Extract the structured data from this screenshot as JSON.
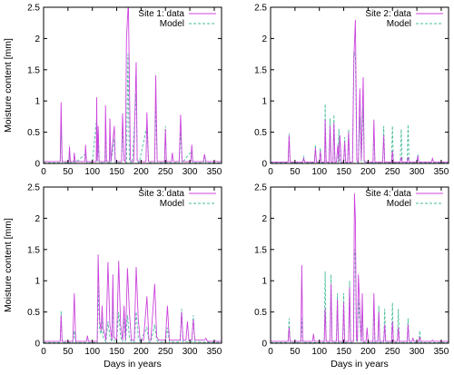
{
  "figure": {
    "xlabel": "Days in years",
    "ylabel": "Moisture content [mm]"
  },
  "chart_data": [
    {
      "type": "line",
      "series": [
        {
          "name": "Site 1:  data",
          "color": "#cc44dd",
          "dash": "solid",
          "x": [
            0,
            10,
            20,
            30,
            34,
            36,
            38,
            44,
            52,
            53,
            55,
            62,
            63,
            65,
            85,
            86,
            88,
            100,
            108,
            109,
            110,
            112,
            114,
            120,
            126,
            127,
            129,
            135,
            136,
            138,
            145,
            147,
            150,
            155,
            160,
            162,
            165,
            168,
            170,
            174,
            178,
            182,
            185,
            190,
            192,
            196,
            200,
            205,
            210,
            212,
            215,
            220,
            228,
            230,
            233,
            240,
            248,
            250,
            252,
            262,
            264,
            266,
            278,
            281,
            284,
            292,
            302,
            304,
            306,
            315,
            328,
            330,
            333,
            345,
            360,
            365
          ],
          "y": [
            0.03,
            0.03,
            0.03,
            0.03,
            0.03,
            0.98,
            0.03,
            0.03,
            0.03,
            0.27,
            0.03,
            0.03,
            0.17,
            0.03,
            0.03,
            0.3,
            0.03,
            0.03,
            0.03,
            1.06,
            0.05,
            0.6,
            0.03,
            0.03,
            0.03,
            0.93,
            0.03,
            0.03,
            0.72,
            0.03,
            0.6,
            0.04,
            0.03,
            0.03,
            0.03,
            0.8,
            0.05,
            0.03,
            2.0,
            2.6,
            0.05,
            0.03,
            0.03,
            1.62,
            0.05,
            0.03,
            0.03,
            0.03,
            0.03,
            0.82,
            0.03,
            0.03,
            0.03,
            1.41,
            0.03,
            0.03,
            0.03,
            0.55,
            0.03,
            0.03,
            0.17,
            0.03,
            0.03,
            0.78,
            0.03,
            0.03,
            0.03,
            0.3,
            0.03,
            0.03,
            0.03,
            0.15,
            0.03,
            0.03,
            0.03,
            0.03
          ]
        },
        {
          "name": "Model",
          "color": "#44bb99",
          "dash": "dashed",
          "x": [
            0,
            34,
            36,
            38,
            52,
            53,
            55,
            62,
            63,
            65,
            86,
            88,
            100,
            109,
            110,
            112,
            114,
            126,
            127,
            129,
            135,
            136,
            138,
            145,
            147,
            160,
            162,
            165,
            170,
            173,
            176,
            182,
            190,
            192,
            196,
            212,
            215,
            228,
            230,
            233,
            248,
            250,
            252,
            278,
            281,
            284,
            304,
            306,
            328,
            330,
            333,
            365
          ],
          "y": [
            0.01,
            0.01,
            0.55,
            0.01,
            0.01,
            0.2,
            0.01,
            0.01,
            0.1,
            0.01,
            0.15,
            0.01,
            0.01,
            0.72,
            0.03,
            0.3,
            0.01,
            0.01,
            0.62,
            0.01,
            0.01,
            0.45,
            0.01,
            0.4,
            0.01,
            0.01,
            0.6,
            0.03,
            0.01,
            1.75,
            0.03,
            0.01,
            1.12,
            0.03,
            0.01,
            0.6,
            0.01,
            0.01,
            1.0,
            0.01,
            0.01,
            0.6,
            0.01,
            0.01,
            0.5,
            0.01,
            0.2,
            0.01,
            0.01,
            0.1,
            0.01,
            0.01
          ]
        }
      ]
    },
    {
      "type": "line",
      "series": [
        {
          "name": "Site 2:  data",
          "color": "#cc44dd",
          "dash": "solid",
          "x": [
            0,
            36,
            38,
            40,
            66,
            68,
            70,
            90,
            92,
            94,
            100,
            102,
            104,
            111,
            112,
            114,
            120,
            122,
            124,
            128,
            130,
            132,
            135,
            138,
            140,
            142,
            145,
            150,
            152,
            154,
            158,
            160,
            162,
            168,
            171,
            174,
            177,
            180,
            183,
            186,
            190,
            192,
            195,
            210,
            212,
            214,
            230,
            232,
            234,
            248,
            250,
            252,
            266,
            268,
            270,
            280,
            282,
            284,
            300,
            302,
            304,
            330,
            332,
            334,
            365
          ],
          "y": [
            0.02,
            0.02,
            0.45,
            0.02,
            0.02,
            0.08,
            0.02,
            0.02,
            0.25,
            0.02,
            0.02,
            0.2,
            0.02,
            0.02,
            0.7,
            0.02,
            0.02,
            0.6,
            0.02,
            0.02,
            0.65,
            0.02,
            0.02,
            0.3,
            0.02,
            0.45,
            0.02,
            0.02,
            0.35,
            0.02,
            0.02,
            0.5,
            0.02,
            0.02,
            1.7,
            2.3,
            0.05,
            0.02,
            1.2,
            0.05,
            1.38,
            0.05,
            0.02,
            0.02,
            0.7,
            0.02,
            0.02,
            0.45,
            0.02,
            0.02,
            0.2,
            0.02,
            0.02,
            0.1,
            0.02,
            0.02,
            0.1,
            0.02,
            0.02,
            0.12,
            0.02,
            0.02,
            0.08,
            0.02,
            0.02
          ]
        },
        {
          "name": "Model",
          "color": "#44bb99",
          "dash": "dashed",
          "x": [
            0,
            36,
            38,
            40,
            66,
            68,
            70,
            90,
            92,
            94,
            100,
            102,
            104,
            111,
            112,
            114,
            120,
            122,
            124,
            128,
            130,
            132,
            138,
            140,
            142,
            150,
            152,
            154,
            158,
            160,
            162,
            168,
            171,
            174,
            177,
            180,
            183,
            186,
            190,
            192,
            195,
            210,
            212,
            214,
            230,
            232,
            234,
            248,
            250,
            252,
            266,
            268,
            270,
            280,
            282,
            284,
            300,
            302,
            304,
            365
          ],
          "y": [
            0.01,
            0.01,
            0.48,
            0.01,
            0.01,
            0.12,
            0.01,
            0.01,
            0.3,
            0.01,
            0.01,
            0.25,
            0.01,
            0.01,
            0.95,
            0.01,
            0.01,
            0.72,
            0.01,
            0.01,
            0.78,
            0.01,
            0.01,
            0.55,
            0.01,
            0.01,
            0.42,
            0.01,
            0.01,
            0.55,
            0.01,
            0.01,
            1.8,
            1.7,
            0.03,
            0.01,
            0.75,
            0.03,
            0.9,
            0.03,
            0.01,
            0.01,
            0.55,
            0.01,
            0.01,
            0.6,
            0.01,
            0.01,
            0.6,
            0.01,
            0.01,
            0.55,
            0.01,
            0.01,
            0.62,
            0.01,
            0.01,
            0.15,
            0.01,
            0.01
          ]
        }
      ]
    },
    {
      "type": "line",
      "series": [
        {
          "name": "Site 3:  data",
          "color": "#cc44dd",
          "dash": "solid",
          "x": [
            0,
            34,
            36,
            38,
            60,
            63,
            66,
            88,
            90,
            92,
            110,
            112,
            115,
            118,
            120,
            122,
            128,
            132,
            136,
            140,
            142,
            144,
            150,
            154,
            158,
            162,
            165,
            168,
            172,
            176,
            180,
            186,
            190,
            194,
            198,
            205,
            212,
            216,
            220,
            228,
            232,
            236,
            250,
            254,
            258,
            262,
            280,
            283,
            286,
            292,
            295,
            298,
            304,
            307,
            310,
            330,
            333,
            336,
            365
          ],
          "y": [
            0.03,
            0.03,
            0.45,
            0.03,
            0.03,
            0.8,
            0.03,
            0.03,
            0.12,
            0.03,
            0.03,
            1.42,
            0.35,
            0.2,
            0.6,
            0.25,
            0.05,
            1.3,
            0.3,
            0.05,
            1.1,
            0.1,
            0.05,
            1.32,
            0.3,
            0.05,
            0.6,
            0.05,
            1.2,
            0.5,
            0.05,
            0.05,
            1.22,
            0.4,
            0.05,
            0.05,
            0.75,
            0.05,
            0.05,
            0.95,
            0.1,
            0.05,
            0.05,
            0.6,
            0.05,
            0.05,
            0.05,
            0.5,
            0.05,
            0.05,
            0.35,
            0.05,
            0.05,
            0.38,
            0.05,
            0.05,
            0.08,
            0.03,
            0.03
          ]
        },
        {
          "name": "Model",
          "color": "#44bb99",
          "dash": "dashed",
          "x": [
            0,
            34,
            36,
            38,
            60,
            63,
            66,
            110,
            112,
            115,
            118,
            120,
            122,
            128,
            132,
            136,
            140,
            142,
            144,
            150,
            154,
            158,
            162,
            165,
            168,
            172,
            176,
            180,
            186,
            190,
            194,
            198,
            212,
            216,
            220,
            228,
            232,
            236,
            250,
            254,
            258,
            280,
            283,
            286,
            304,
            307,
            310,
            365
          ],
          "y": [
            0.01,
            0.01,
            0.52,
            0.01,
            0.01,
            0.2,
            0.01,
            0.01,
            0.9,
            0.2,
            0.15,
            0.4,
            0.1,
            0.02,
            0.35,
            0.1,
            0.02,
            0.7,
            0.05,
            0.02,
            0.5,
            0.1,
            0.02,
            0.4,
            0.02,
            0.45,
            0.1,
            0.02,
            0.02,
            0.5,
            0.1,
            0.02,
            0.25,
            0.02,
            0.02,
            0.3,
            0.05,
            0.02,
            0.02,
            0.25,
            0.02,
            0.02,
            0.55,
            0.02,
            0.02,
            0.45,
            0.02,
            0.01
          ]
        }
      ]
    },
    {
      "type": "line",
      "series": [
        {
          "name": "Site 4:  data",
          "color": "#cc44dd",
          "dash": "solid",
          "x": [
            0,
            36,
            38,
            40,
            62,
            64,
            66,
            86,
            88,
            90,
            110,
            112,
            114,
            122,
            124,
            126,
            135,
            137,
            139,
            148,
            150,
            152,
            160,
            162,
            164,
            170,
            172,
            174,
            176,
            178,
            180,
            186,
            188,
            190,
            196,
            198,
            200,
            210,
            212,
            214,
            220,
            222,
            224,
            232,
            234,
            236,
            248,
            250,
            252,
            260,
            262,
            264,
            280,
            282,
            284,
            290,
            292,
            294,
            304,
            306,
            308,
            330,
            332,
            334,
            365
          ],
          "y": [
            0.03,
            0.03,
            0.25,
            0.03,
            0.03,
            1.25,
            0.03,
            0.03,
            0.15,
            0.03,
            0.03,
            0.55,
            0.03,
            0.03,
            0.95,
            0.03,
            0.03,
            0.7,
            0.03,
            0.03,
            0.65,
            0.03,
            0.03,
            0.9,
            0.03,
            0.03,
            2.4,
            2.0,
            0.1,
            0.03,
            1.1,
            0.03,
            0.8,
            0.03,
            0.03,
            0.25,
            0.03,
            0.03,
            0.8,
            0.03,
            0.03,
            0.5,
            0.03,
            0.03,
            0.3,
            0.03,
            0.03,
            0.35,
            0.03,
            0.03,
            0.25,
            0.03,
            0.03,
            0.3,
            0.03,
            0.03,
            0.08,
            0.03,
            0.03,
            0.1,
            0.03,
            0.03,
            0.05,
            0.03,
            0.03
          ]
        },
        {
          "name": "Model",
          "color": "#44bb99",
          "dash": "dashed",
          "x": [
            0,
            36,
            38,
            40,
            62,
            64,
            66,
            110,
            112,
            114,
            122,
            124,
            126,
            135,
            137,
            139,
            148,
            150,
            152,
            160,
            162,
            164,
            170,
            172,
            174,
            176,
            178,
            180,
            186,
            188,
            190,
            210,
            212,
            214,
            220,
            222,
            224,
            232,
            234,
            236,
            248,
            250,
            252,
            260,
            262,
            264,
            280,
            282,
            284,
            304,
            306,
            308,
            365
          ],
          "y": [
            0.01,
            0.01,
            0.4,
            0.01,
            0.01,
            0.4,
            0.01,
            0.01,
            1.15,
            0.01,
            0.01,
            1.1,
            0.01,
            0.01,
            0.8,
            0.01,
            0.01,
            0.8,
            0.01,
            0.01,
            1.0,
            0.01,
            0.01,
            1.5,
            1.4,
            0.05,
            0.01,
            0.7,
            0.01,
            0.6,
            0.01,
            0.01,
            0.7,
            0.01,
            0.01,
            0.6,
            0.01,
            0.01,
            0.55,
            0.01,
            0.01,
            0.65,
            0.01,
            0.01,
            0.55,
            0.01,
            0.01,
            0.4,
            0.01,
            0.01,
            0.2,
            0.01,
            0.01
          ]
        }
      ]
    }
  ],
  "axes": {
    "xlim": [
      0,
      365
    ],
    "ylim": [
      0,
      2.5
    ],
    "xticks": [
      0,
      50,
      100,
      150,
      200,
      250,
      300,
      350
    ],
    "yticks": [
      0,
      0.5,
      1,
      1.5,
      2,
      2.5
    ],
    "yticklabels": [
      "0",
      "0.5",
      "1",
      "1.5",
      "2",
      "2.5"
    ],
    "legend_position": "top-right",
    "grid": false
  }
}
